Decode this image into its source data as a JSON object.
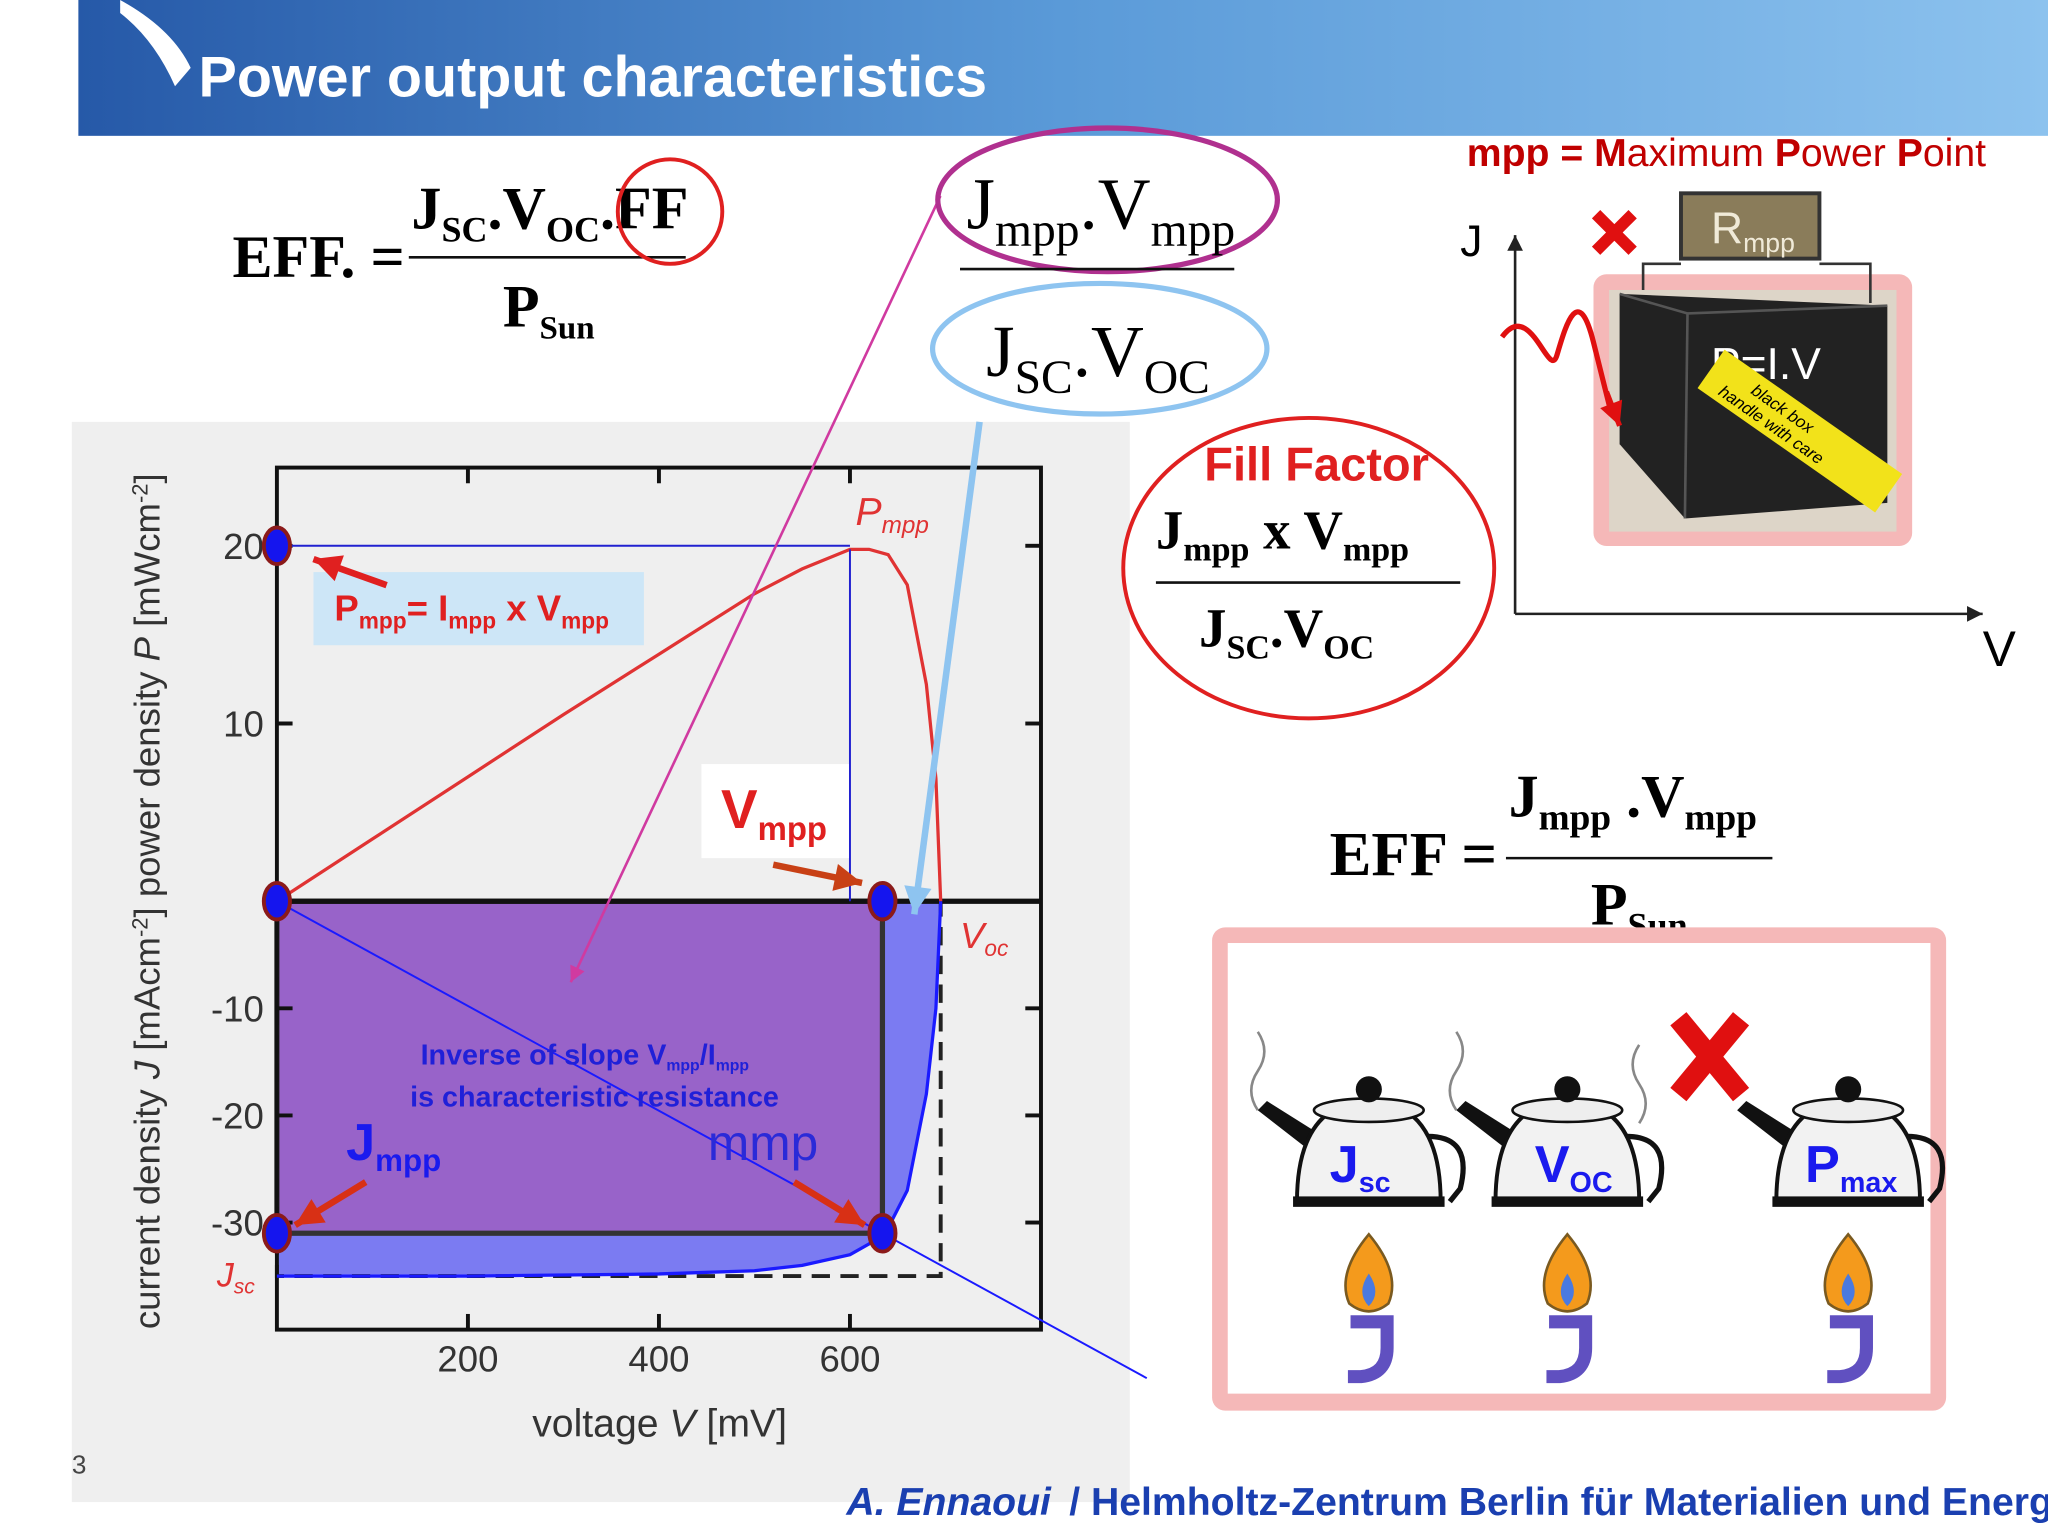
{
  "header": {
    "title": "Power output characteristics"
  },
  "definition": [
    "mpp = ",
    "M",
    "aximum ",
    "P",
    "ower ",
    "P",
    "oint"
  ],
  "formula_eff": {
    "lhs": "EFF. =",
    "numerator": [
      {
        "t": "J",
        "sub": "SC"
      },
      {
        "t": ".V",
        "sub": "OC"
      },
      {
        "t": ".FF"
      }
    ],
    "denominator": [
      {
        "t": "P",
        "sub": "Sun"
      }
    ]
  },
  "formula_ratio": {
    "numerator": [
      {
        "t": "J",
        "sub": "mpp"
      },
      {
        "t": ".V",
        "sub": "mpp"
      }
    ],
    "denominator": [
      {
        "t": "J",
        "sub": "SC"
      },
      {
        "t": ".V",
        "sub": "OC"
      }
    ]
  },
  "fill_factor": {
    "title": "Fill Factor",
    "numerator": [
      {
        "t": "J",
        "sub": "mpp"
      },
      {
        "t": " x V",
        "sub": "mpp"
      }
    ],
    "denominator": [
      {
        "t": "J",
        "sub": "SC"
      },
      {
        "t": ".V",
        "sub": "OC"
      }
    ]
  },
  "formula_eff_mpp": {
    "lhs": "EFF =",
    "numerator": [
      {
        "t": "J",
        "sub": "mpp"
      },
      {
        "t": " .V",
        "sub": "mpp"
      }
    ],
    "denominator": [
      {
        "t": "P",
        "sub": "Sun"
      }
    ]
  },
  "diagram": {
    "y_axis": "J",
    "x_axis": "V",
    "resistor": [
      {
        "t": "R",
        "sub": "mpp"
      }
    ],
    "box_label": "P=I.V",
    "tape": [
      "black box",
      "handle with care"
    ]
  },
  "kettles": [
    [
      {
        "t": "J",
        "sub": "sc"
      }
    ],
    [
      {
        "t": "V",
        "sub": "OC"
      }
    ],
    [
      {
        "t": "P",
        "sub": "max"
      }
    ]
  ],
  "chart_data": {
    "type": "line",
    "x": [
      0,
      100,
      200,
      300,
      400,
      500,
      550,
      600,
      620,
      640,
      660,
      680,
      690,
      695
    ],
    "series": [
      {
        "color": "#1a1aff",
        "values": [
          -35,
          -35,
          -35,
          -34.9,
          -34.8,
          -34.5,
          -34,
          -33,
          -32,
          -30.5,
          -27,
          -18,
          -10,
          0
        ]
      },
      {
        "color": "#e03333",
        "axis": "y2",
        "values": [
          0,
          3.5,
          7.0,
          10.5,
          13.9,
          17.3,
          18.7,
          19.8,
          19.8,
          19.5,
          17.8,
          12.2,
          6.9,
          0
        ]
      }
    ],
    "points": {
      "x": [
        0,
        0,
        634,
        0,
        634
      ],
      "y": [
        20,
        0,
        0,
        -31,
        -31
      ],
      "axis": [
        "y2",
        "y",
        "y",
        "y",
        "y"
      ]
    },
    "xlim": [
      0,
      800
    ],
    "xticks": [
      200,
      400,
      600
    ],
    "ylim": [
      -40,
      0
    ],
    "yticks": [
      -30,
      -20,
      -10
    ],
    "y2lim": [
      0,
      24.4
    ],
    "y2ticks": [
      10,
      20
    ],
    "xlabel": [
      {
        "t": "voltage "
      },
      {
        "t": "V"
      },
      {
        "t": " [mV]"
      }
    ],
    "ylabel": [
      {
        "t": "current density "
      },
      {
        "t": "J"
      },
      {
        "t": " [mAcm",
        "sup": "-2"
      },
      {
        "t": "]  power density "
      },
      {
        "t": "P"
      },
      {
        "t": " [mWcm",
        "sup": "-2"
      },
      {
        "t": "]"
      }
    ],
    "annotations": {
      "pmpp": [
        {
          "t": "P",
          "sub": "mpp"
        }
      ],
      "voc": [
        {
          "t": "V",
          "sub": "oc"
        }
      ],
      "jsc": [
        {
          "t": "J",
          "sub": "sc"
        }
      ],
      "pmpp_formula": [
        {
          "t": "P",
          "sub": "mpp"
        },
        {
          "t": "= I",
          "sub": "mpp"
        },
        {
          "t": " x V",
          "sub": "mpp"
        }
      ],
      "vmpp": [
        {
          "t": "V",
          "sub": "mpp"
        }
      ],
      "jmpp": [
        {
          "t": "J",
          "sub": "mpp"
        }
      ],
      "mmp": "mmp",
      "slope": [
        [
          {
            "t": "Inverse of slope V",
            "sub": "mpp"
          },
          {
            "t": "/I",
            "sub": "mpp"
          }
        ],
        [
          {
            "t": "is characteristic resistance"
          }
        ]
      ]
    }
  },
  "footer": {
    "author": "A. Ennaoui",
    "institution": "/ Helmholtz-Zentrum Berlin für Materialien und Energie",
    "page": "3"
  }
}
